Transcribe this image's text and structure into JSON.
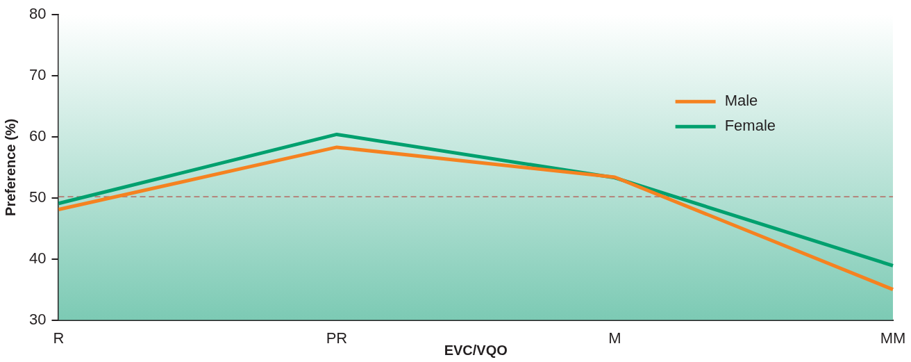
{
  "chart_data": {
    "type": "line",
    "xlabel": "EVC/VQO",
    "ylabel": "Preference (%)",
    "categories": [
      "R",
      "PR",
      "M",
      "MM"
    ],
    "series": [
      {
        "name": "Male",
        "color": "#f58220",
        "values": [
          48.1,
          58.3,
          53.4,
          35.0
        ]
      },
      {
        "name": "Female",
        "color": "#00a06e",
        "values": [
          49.1,
          60.4,
          53.3,
          38.9
        ]
      }
    ],
    "ylim": [
      30,
      80
    ],
    "yticks": [
      30,
      40,
      50,
      60,
      70,
      80
    ],
    "grid": false,
    "legend": "top right",
    "marker": "none",
    "line_style": "solid",
    "ref_lines": [
      {
        "axis": "y",
        "value": 50.2,
        "color": "#b5504a",
        "line_style": "dashed"
      }
    ]
  }
}
